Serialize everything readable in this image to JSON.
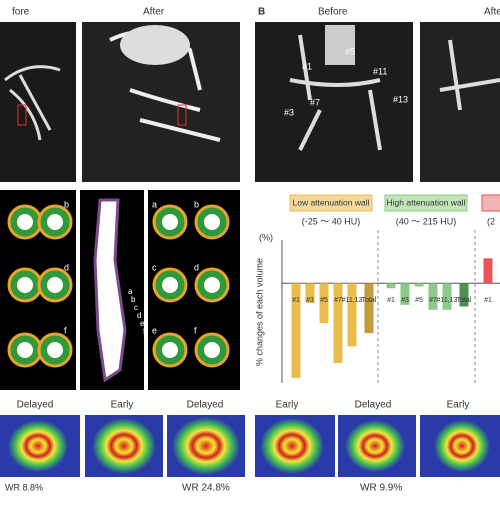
{
  "panel_a": {
    "image_labels": [
      "fore",
      "After"
    ],
    "segment_letters_left": [
      "b",
      "d",
      "f"
    ],
    "segment_letters_strip": [
      "a",
      "b",
      "c",
      "d",
      "e",
      "f"
    ],
    "segment_letters_right": [
      "a",
      "b",
      "c",
      "d",
      "e",
      "f"
    ]
  },
  "panel_b": {
    "letter": "B",
    "image_labels": [
      "Before",
      "Afte"
    ],
    "vessel_labels": [
      "#1",
      "#5",
      "#11",
      "#7",
      "#3",
      "#13"
    ]
  },
  "chart_data": {
    "type": "grouped-bar",
    "y_label": "% changes of each volume",
    "y_unit": "(%)",
    "ylim": [
      -60,
      20
    ],
    "groups": [
      {
        "name": "Low attenuation wall",
        "range": "(-25 ～ 40 HU)",
        "header_color": "#f6d79c",
        "color": "#e9bd4c",
        "total_color": "#c49a3c",
        "categories": [
          "#1",
          "#3",
          "#5",
          "#7",
          "#11,13",
          "Total"
        ],
        "values": [
          -57,
          -12,
          -24,
          -48,
          -38,
          -30
        ]
      },
      {
        "name": "High attenuation wall",
        "range": "(40 ～ 215 HU)",
        "header_color": "#c3e3b8",
        "color": "#8cc98a",
        "total_color": "#4f8f56",
        "categories": [
          "#1",
          "#3",
          "#5",
          "#7",
          "#11,13",
          "Total"
        ],
        "values": [
          -3,
          -13,
          -2,
          -16,
          -16,
          -14
        ]
      },
      {
        "name": null,
        "range": "(2",
        "header_color": "#f4b3b3",
        "color": "#e8555a",
        "total_color": "#e8555a",
        "categories": [
          "#1"
        ],
        "values": [
          15
        ]
      }
    ]
  },
  "bottom": {
    "labels": [
      "Delayed",
      "Early",
      "Delayed",
      "Early",
      "Delayed",
      "Early"
    ],
    "washout": [
      "WR 8.8%",
      "WR 24.8%",
      "WR 9.9%"
    ]
  }
}
